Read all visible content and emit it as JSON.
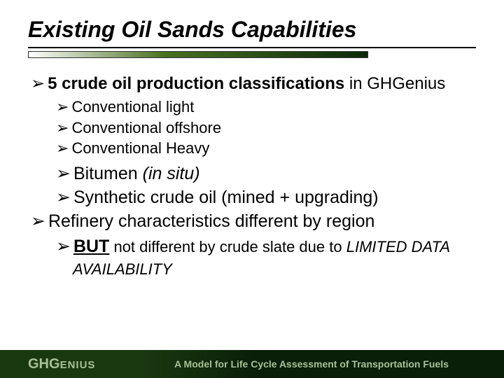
{
  "title": "Existing Oil Sands Capabilities",
  "bullets": {
    "main1_bold": "5 crude oil production classifications",
    "main1_rest": " in GHGenius",
    "sub1": "Conventional light",
    "sub2": "Conventional offshore",
    "sub3": "Conventional Heavy",
    "sub4_a": "Bitumen ",
    "sub4_b": "(in situ)",
    "sub5": "Synthetic crude oil (mined + upgrading)",
    "main2": "Refinery characteristics different by region",
    "sub6_but": "BUT",
    "sub6_mid": " not different by crude slate due to ",
    "sub6_lim": "LIMITED DATA AVAILABILITY"
  },
  "footer": {
    "brand_a": "GHG",
    "brand_b": "ENIUS",
    "tagline": "A Model for Life Cycle Assessment of Transportation Fuels"
  },
  "glyphs": {
    "arrow": "➢"
  },
  "colors": {
    "text": "#000000",
    "footer_bg_left": "#1a3810",
    "footer_bg_right": "#0a1f08",
    "footer_text": "#a8c098",
    "bar_mid": "#4a7020",
    "bar_end": "#0a2a0a"
  }
}
